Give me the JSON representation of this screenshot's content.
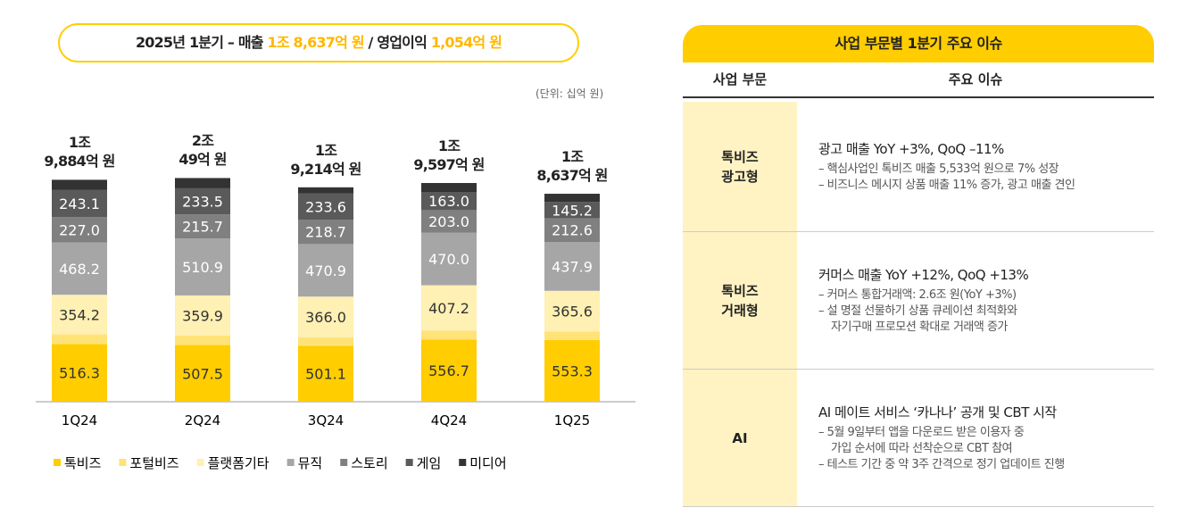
{
  "headline": {
    "prefix": "2025년 1분기 – 매출",
    "revenue": "1조 8,637억 원",
    "separator": "/ 영업이익",
    "profit": "1,054억 원"
  },
  "unit_note": "(단위: 십억 원)",
  "chart_data": {
    "type": "stacked-bar",
    "categories": [
      "1Q24",
      "2Q24",
      "3Q24",
      "4Q24",
      "1Q25"
    ],
    "ylim": [
      0,
      2400
    ],
    "series": [
      {
        "name": "톡비즈",
        "color": "#ffcd00",
        "values": [
          516.3,
          507.5,
          501.1,
          556.7,
          553.3
        ],
        "value_labels": [
          "516.3",
          "507.5",
          "501.1",
          "556.7",
          "553.3"
        ]
      },
      {
        "name": "포털비즈",
        "color": "#ffe377",
        "values": [
          88,
          85,
          75,
          80,
          75
        ]
      },
      {
        "name": "플랫폼기타",
        "color": "#fff0b3",
        "values": [
          354.2,
          359.9,
          366.0,
          407.2,
          365.6
        ],
        "value_labels": [
          "354.2",
          "359.9",
          "366.0",
          "407.2",
          "365.6"
        ]
      },
      {
        "name": "뮤직",
        "color": "#a6a6a6",
        "values": [
          468.2,
          510.9,
          470.9,
          470.0,
          437.9
        ],
        "value_labels": [
          "468.2",
          "510.9",
          "470.9",
          "470.0",
          "437.9"
        ]
      },
      {
        "name": "스토리",
        "color": "#808080",
        "values": [
          227.0,
          215.7,
          218.7,
          203.0,
          212.6
        ],
        "value_labels": [
          "227.0",
          "215.7",
          "218.7",
          "203.0",
          "212.6"
        ]
      },
      {
        "name": "게임",
        "color": "#5a5a5a",
        "values": [
          243.1,
          233.5,
          233.6,
          163.0,
          145.2
        ],
        "value_labels": [
          "243.1",
          "233.5",
          "233.6",
          "163.0",
          "145.2"
        ]
      },
      {
        "name": "미디어",
        "color": "#333333",
        "values": [
          92,
          92,
          56,
          80,
          74
        ]
      }
    ],
    "totals": {
      "values": [
        1988.4,
        2004.9,
        1921.4,
        1959.7,
        1863.7
      ],
      "value_labels": [
        "1조\n9,884억 원",
        "2조\n49억 원",
        "1조\n9,214억 원",
        "1조\n9,597억 원",
        "1조\n8,637억 원"
      ]
    }
  },
  "table": {
    "title": "사업 부문별 1분기 주요 이슈",
    "columns": [
      "사업 부문",
      "주요 이슈"
    ],
    "rows": [
      {
        "segment": "톡비즈\n광고형",
        "heading": "광고 매출 YoY +3%, QoQ –11%",
        "bullets": [
          "– 핵심사업인 톡비즈 매출 5,533억 원으로 7% 성장",
          "– 비즈니스 메시지 상품 매출 11% 증가, 광고 매출 견인"
        ]
      },
      {
        "segment": "톡비즈\n거래형",
        "heading": "커머스 매출 YoY +12%, QoQ +13%",
        "bullets": [
          "– 커머스 통합거래액: 2.6조 원(YoY +3%)",
          "– 설 명절 선물하기 상품 큐레이션 최적화와\n자기구매 프로모션 확대로 거래액 증가"
        ]
      },
      {
        "segment": "AI",
        "heading": "AI 메이트 서비스 ‘카나나’ 공개 및 CBT 시작",
        "bullets": [
          "– 5월 9일부터 앱을 다운로드 받은 이용자 중\n가입 순서에 따라 선착순으로 CBT 참여",
          "– 테스트 기간 중 약 3주 간격으로 정기 업데이트 진행"
        ]
      }
    ]
  }
}
